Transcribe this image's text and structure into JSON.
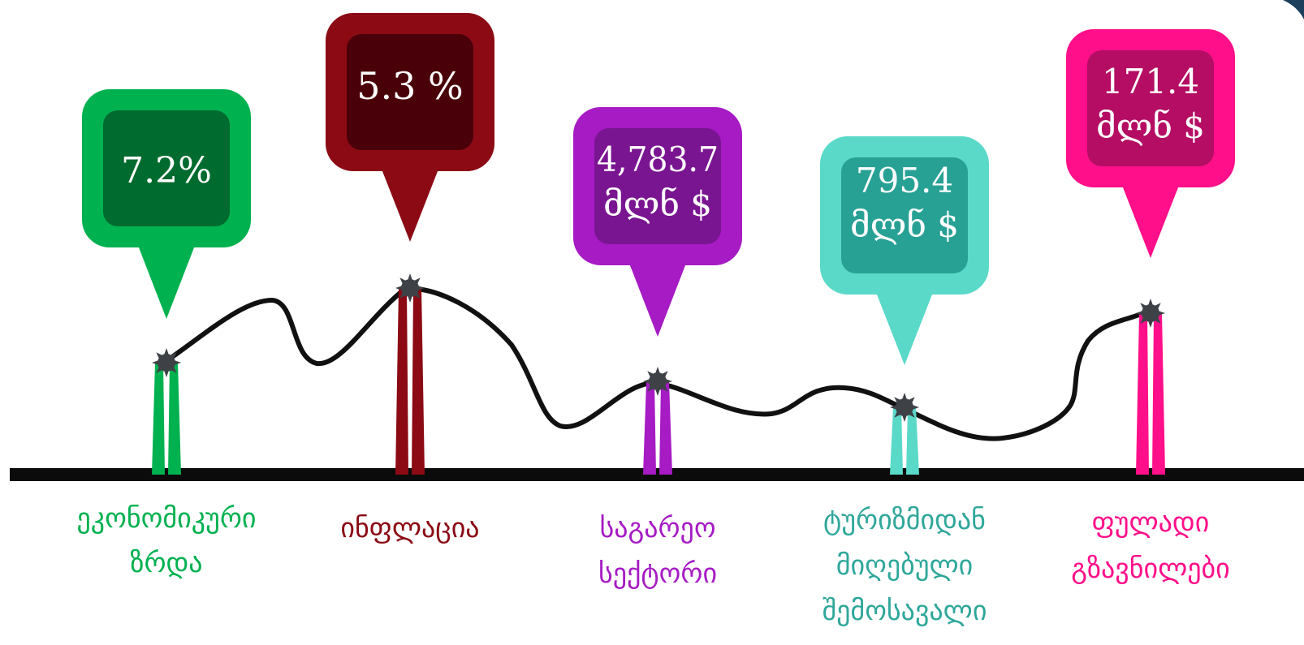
{
  "colors": {
    "line": "#111111",
    "baseline": "#0b0b0b",
    "marker": "#3e4247"
  },
  "indicators": [
    {
      "value_lines": [
        "7.2%"
      ],
      "label_lines": [
        "ეკონომიკური",
        "ზრდა"
      ],
      "color": "#00b14f",
      "inner_color": "#006b2e"
    },
    {
      "value_lines": [
        "5.3 %"
      ],
      "label_lines": [
        "ინფლაცია"
      ],
      "color": "#8b0a14",
      "inner_color": "#4a0009"
    },
    {
      "value_lines": [
        "4,783.7",
        "მლნ $"
      ],
      "label_lines": [
        "საგარეო",
        "სექტორი"
      ],
      "color": "#a61bc4",
      "inner_color": "#7a1591"
    },
    {
      "value_lines": [
        "795.4",
        "მლნ $"
      ],
      "label_lines": [
        "ტურიზმიდან",
        "მიღებული",
        "შემოსავალი"
      ],
      "color": "#5ad9c9",
      "inner_color": "#28a195",
      "label_color": "#2fa79a"
    },
    {
      "value_lines": [
        "171.4",
        "მლნ $"
      ],
      "label_lines": [
        "ფულადი",
        "გზავნილები"
      ],
      "color": "#ff0f8a",
      "inner_color": "#b40d63"
    }
  ]
}
